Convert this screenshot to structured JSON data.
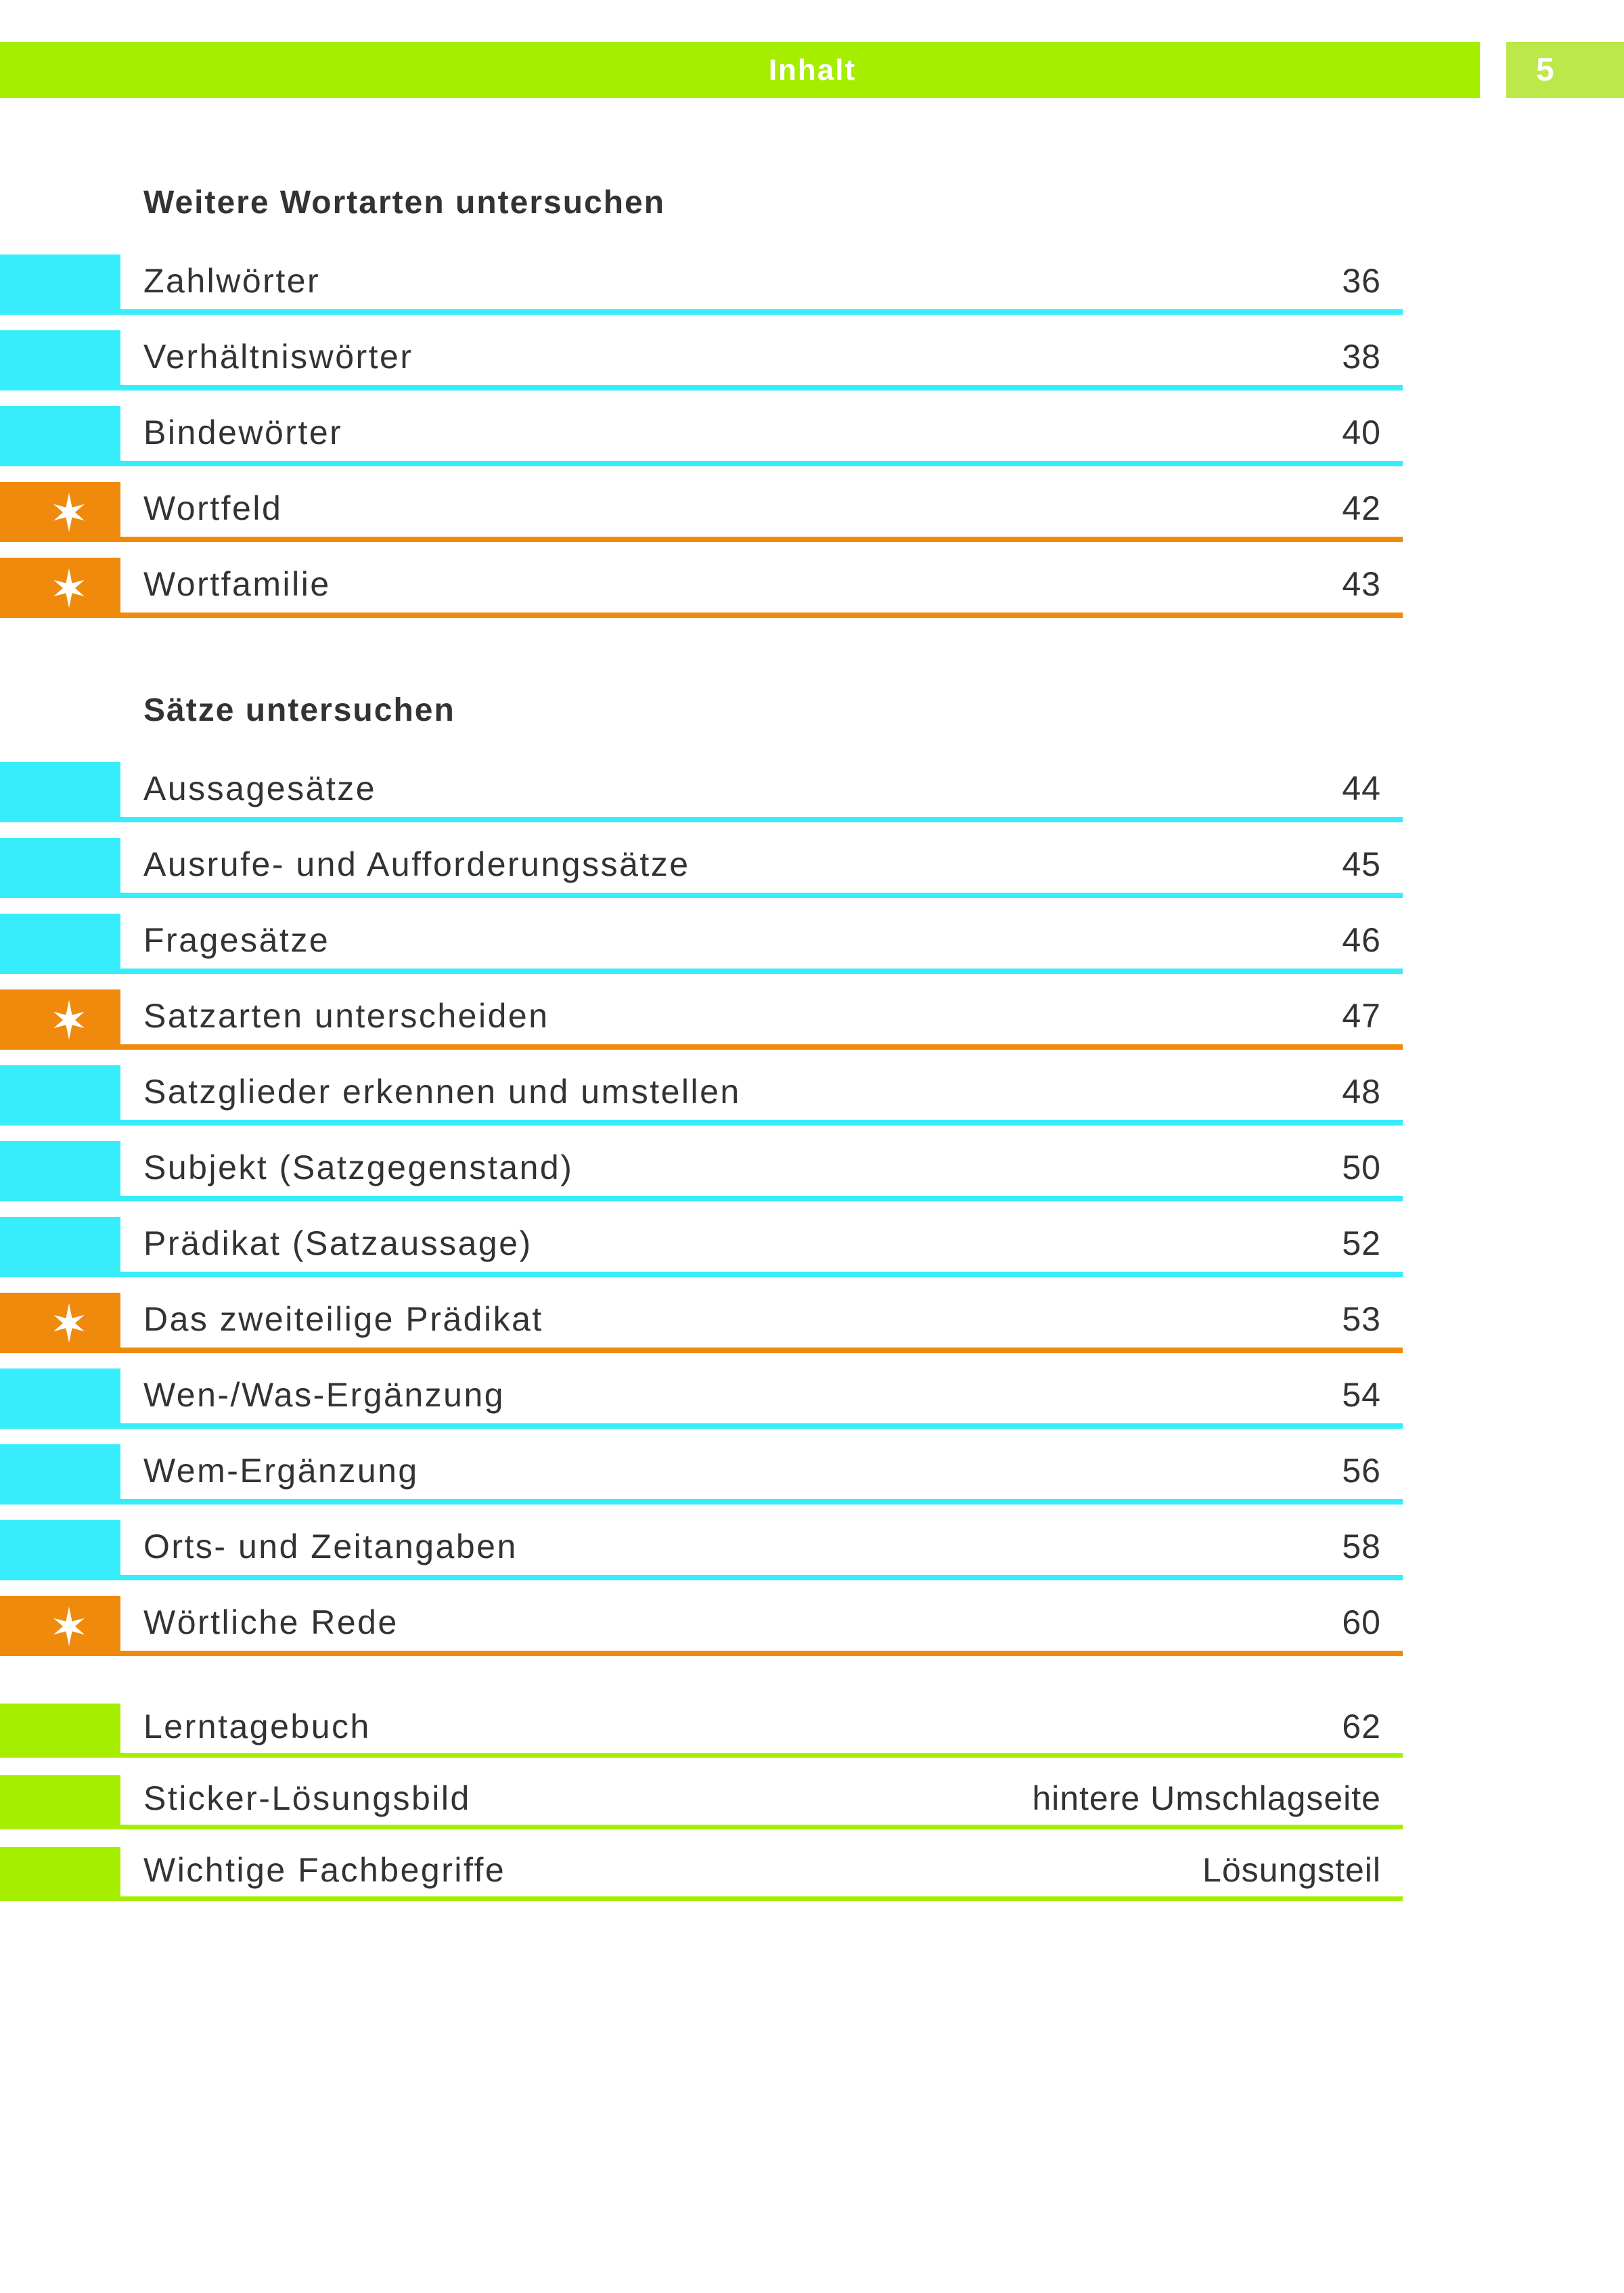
{
  "header": {
    "title": "Inhalt",
    "page_number": "5"
  },
  "colors": {
    "green": "#a6ee00",
    "green_badge": "#bce84a",
    "cyan": "#38edfb",
    "orange": "#f08a0c",
    "text": "#333333",
    "star": "#ffffff"
  },
  "sections": [
    {
      "heading": "Weitere Wortarten untersuchen",
      "items": [
        {
          "label": "Zahlwörter",
          "value": "36",
          "marker": "cyan",
          "star": false
        },
        {
          "label": "Verhältniswörter",
          "value": "38",
          "marker": "cyan",
          "star": false
        },
        {
          "label": "Bindewörter",
          "value": "40",
          "marker": "cyan",
          "star": false
        },
        {
          "label": "Wortfeld",
          "value": "42",
          "marker": "orange",
          "star": true
        },
        {
          "label": "Wortfamilie",
          "value": "43",
          "marker": "orange",
          "star": true
        }
      ]
    },
    {
      "heading": "Sätze untersuchen",
      "items": [
        {
          "label": "Aussagesätze",
          "value": "44",
          "marker": "cyan",
          "star": false
        },
        {
          "label": "Ausrufe- und Aufforderungssätze",
          "value": "45",
          "marker": "cyan",
          "star": false
        },
        {
          "label": "Fragesätze",
          "value": "46",
          "marker": "cyan",
          "star": false
        },
        {
          "label": "Satzarten unterscheiden",
          "value": "47",
          "marker": "orange",
          "star": true
        },
        {
          "label": "Satzglieder erkennen und umstellen",
          "value": "48",
          "marker": "cyan",
          "star": false
        },
        {
          "label": "Subjekt (Satzgegenstand)",
          "value": "50",
          "marker": "cyan",
          "star": false
        },
        {
          "label": "Prädikat (Satzaussage)",
          "value": "52",
          "marker": "cyan",
          "star": false
        },
        {
          "label": "Das zweiteilige Prädikat",
          "value": "53",
          "marker": "orange",
          "star": true
        },
        {
          "label": "Wen-/Was-Ergänzung",
          "value": "54",
          "marker": "cyan",
          "star": false
        },
        {
          "label": "Wem-Ergänzung",
          "value": "56",
          "marker": "cyan",
          "star": false
        },
        {
          "label": "Orts- und Zeitangaben",
          "value": "58",
          "marker": "cyan",
          "star": false
        },
        {
          "label": "Wörtliche Rede",
          "value": "60",
          "marker": "orange",
          "star": true
        }
      ]
    },
    {
      "heading": null,
      "items": [
        {
          "label": "Lerntagebuch",
          "value": "62",
          "marker": "green",
          "star": false
        },
        {
          "label": "Sticker-Lösungsbild",
          "value": "hintere Umschlagseite",
          "marker": "green",
          "star": false
        },
        {
          "label": "Wichtige Fachbegriffe",
          "value": "Lösungsteil",
          "marker": "green",
          "star": false
        }
      ]
    }
  ]
}
